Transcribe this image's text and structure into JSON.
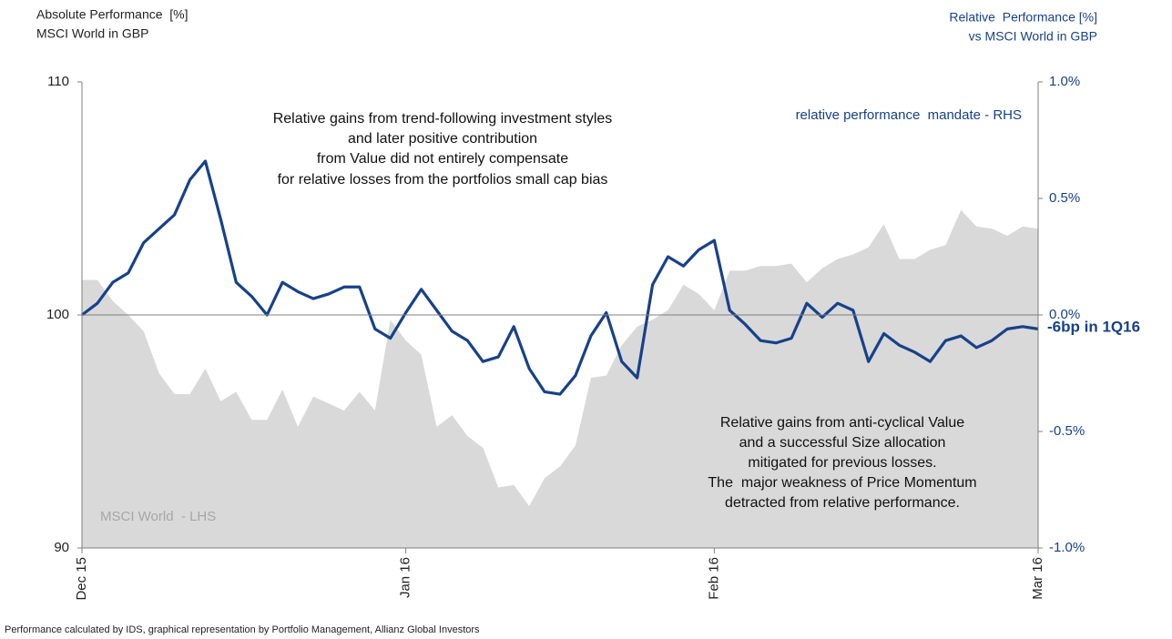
{
  "chart_data": {
    "type": "combo",
    "title_left": [
      "Absolute Performance  [%]",
      "MSCI World in GBP"
    ],
    "title_right": [
      "Relative  Performance [%]",
      "vs MSCI World in GBP"
    ],
    "annotations": [
      {
        "lines": [
          "Relative gains from trend-following investment styles",
          "and later positive contribution",
          "from Value did not entirely compensate",
          "for relative losses from the portfolios small cap bias"
        ]
      },
      {
        "lines": [
          "Relative gains from anti-cyclical Value",
          "and a successful Size allocation",
          "mitigated for previous losses.",
          "The  major weakness of Price Momentum",
          "detracted from relative performance."
        ]
      }
    ],
    "end_label": "-6bp in 1Q16",
    "footnote": "Performance calculated by IDS, graphical representation by Portfolio Management, Allianz Global Investors",
    "x": [
      0,
      1,
      2,
      3,
      4,
      5,
      6,
      7,
      8,
      9,
      10,
      11,
      12,
      13,
      14,
      15,
      16,
      17,
      18,
      19,
      20,
      21,
      22,
      23,
      24,
      25,
      26,
      27,
      28,
      29,
      30,
      31,
      32,
      33,
      34,
      35,
      36,
      37,
      38,
      39,
      40,
      41,
      42,
      43,
      44,
      45,
      46,
      47,
      48,
      49,
      50,
      51,
      52,
      53,
      54,
      55,
      56,
      57,
      58,
      59,
      60,
      61,
      62
    ],
    "xlim": [
      0,
      62
    ],
    "xticks": [
      {
        "value": 0,
        "label": "Dec 15"
      },
      {
        "value": 21,
        "label": "Jan 16"
      },
      {
        "value": 41,
        "label": "Feb 16"
      },
      {
        "value": 62,
        "label": "Mar 16"
      }
    ],
    "ylim": [
      90,
      110
    ],
    "yticks": [
      90,
      100,
      110
    ],
    "y2lim": [
      -1.0,
      1.0
    ],
    "y2ticks": [
      {
        "value": -1.0,
        "label": "-1.0%"
      },
      {
        "value": -0.5,
        "label": "-0.5%"
      },
      {
        "value": 0.0,
        "label": "0.0%"
      },
      {
        "value": 0.5,
        "label": "0.5%"
      },
      {
        "value": 1.0,
        "label": "1.0%"
      }
    ],
    "hline": 100,
    "grid": false,
    "series": [
      {
        "name": "MSCI World  - LHS",
        "kind": "area",
        "color": "#d9d9d9",
        "label_color": "#a6a6a6",
        "values": [
          101.5,
          101.5,
          100.6,
          100.0,
          99.3,
          97.5,
          96.6,
          96.6,
          97.7,
          96.3,
          96.7,
          95.5,
          95.5,
          96.8,
          95.2,
          96.5,
          96.2,
          95.9,
          96.7,
          95.9,
          99.8,
          98.9,
          98.3,
          95.2,
          95.7,
          94.8,
          94.3,
          92.6,
          92.7,
          91.8,
          93.0,
          93.5,
          94.4,
          97.3,
          97.4,
          98.7,
          99.5,
          99.8,
          100.2,
          101.3,
          100.9,
          100.2,
          101.9,
          101.9,
          102.1,
          102.1,
          102.2,
          101.4,
          102.0,
          102.4,
          102.6,
          102.9,
          103.9,
          102.4,
          102.4,
          102.8,
          103.0,
          104.5,
          103.8,
          103.7,
          103.4,
          103.8,
          103.7
        ]
      },
      {
        "name": "relative performance  mandate - RHS",
        "kind": "line",
        "axis": "y2",
        "color": "#17418a",
        "label_color": "#17418a",
        "values": [
          0.0,
          0.05,
          0.14,
          0.18,
          0.31,
          0.37,
          0.43,
          0.58,
          0.66,
          0.41,
          0.14,
          0.08,
          0.0,
          0.14,
          0.1,
          0.07,
          0.09,
          0.12,
          0.12,
          -0.06,
          -0.1,
          0.01,
          0.11,
          0.02,
          -0.07,
          -0.11,
          -0.2,
          -0.18,
          -0.05,
          -0.23,
          -0.33,
          -0.34,
          -0.26,
          -0.09,
          0.01,
          -0.2,
          -0.27,
          0.13,
          0.25,
          0.21,
          0.28,
          0.32,
          0.02,
          -0.04,
          -0.11,
          -0.12,
          -0.1,
          0.05,
          -0.01,
          0.05,
          0.02,
          -0.2,
          -0.08,
          -0.13,
          -0.16,
          -0.2,
          -0.11,
          -0.09,
          -0.14,
          -0.11,
          -0.06,
          -0.05,
          -0.06
        ]
      }
    ]
  }
}
